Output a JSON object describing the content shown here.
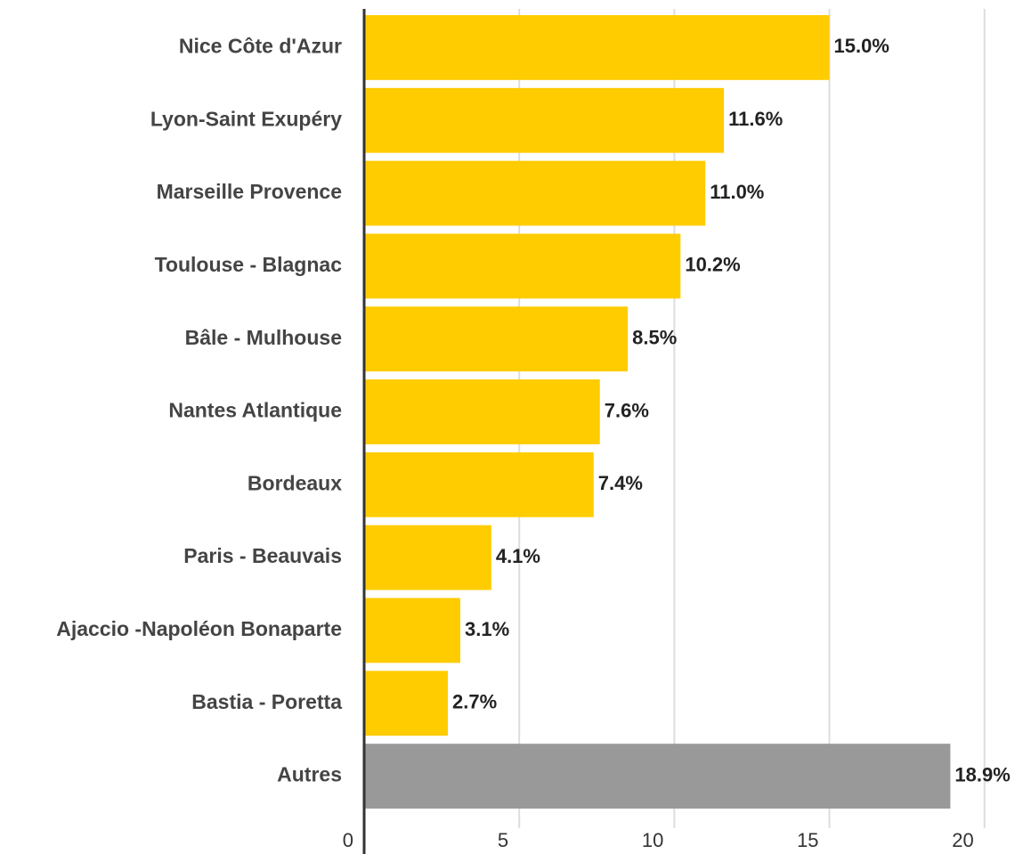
{
  "chart_data": {
    "type": "bar",
    "orientation": "horizontal",
    "categories": [
      "Nice Côte d'Azur",
      "Lyon-Saint Exupéry",
      "Marseille Provence",
      "Toulouse - Blagnac",
      "Bâle - Mulhouse",
      "Nantes Atlantique",
      "Bordeaux",
      "Paris - Beauvais",
      "Ajaccio -Napoléon Bonaparte",
      "Bastia - Poretta",
      "Autres"
    ],
    "values": [
      15.0,
      11.6,
      11.0,
      10.2,
      8.5,
      7.6,
      7.4,
      4.1,
      3.1,
      2.7,
      18.9
    ],
    "value_labels": [
      "15.0%",
      "11.6%",
      "11.0%",
      "10.2%",
      "8.5%",
      "7.6%",
      "7.4%",
      "4.1%",
      "3.1%",
      "2.7%",
      "18.9%"
    ],
    "colors": [
      "#ffcc00",
      "#ffcc00",
      "#ffcc00",
      "#ffcc00",
      "#ffcc00",
      "#ffcc00",
      "#ffcc00",
      "#ffcc00",
      "#ffcc00",
      "#ffcc00",
      "#999999"
    ],
    "xlim": [
      0,
      21.5
    ],
    "xticks": [
      0,
      5,
      10,
      15,
      20
    ],
    "grid": true
  }
}
